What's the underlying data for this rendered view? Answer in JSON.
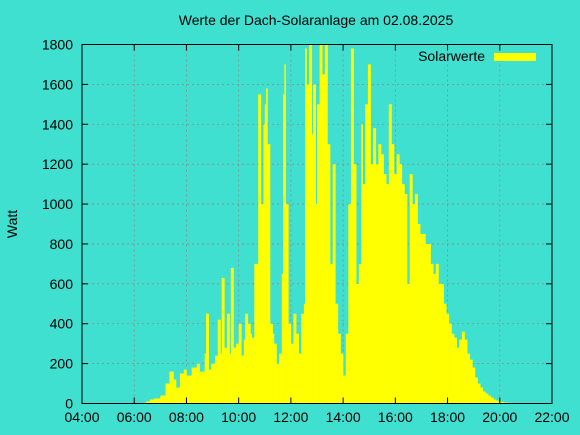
{
  "chart_data": {
    "type": "area",
    "title": "Werte der Dach-Solaranlage am 02.08.2025",
    "xlabel": "",
    "ylabel": "Watt",
    "x_unit": "hours",
    "xlim": [
      4,
      22
    ],
    "ylim": [
      0,
      1800
    ],
    "x_ticks": [
      {
        "value": 4,
        "label": "04:00"
      },
      {
        "value": 6,
        "label": "06:00"
      },
      {
        "value": 8,
        "label": "08:00"
      },
      {
        "value": 10,
        "label": "10:00"
      },
      {
        "value": 12,
        "label": "12:00"
      },
      {
        "value": 14,
        "label": "14:00"
      },
      {
        "value": 16,
        "label": "16:00"
      },
      {
        "value": 18,
        "label": "18:00"
      },
      {
        "value": 20,
        "label": "20:00"
      },
      {
        "value": 22,
        "label": "22:00"
      }
    ],
    "y_ticks": [
      {
        "value": 0,
        "label": "0"
      },
      {
        "value": 200,
        "label": "200"
      },
      {
        "value": 400,
        "label": "400"
      },
      {
        "value": 600,
        "label": "600"
      },
      {
        "value": 800,
        "label": "800"
      },
      {
        "value": 1000,
        "label": "1000"
      },
      {
        "value": 1200,
        "label": "1200"
      },
      {
        "value": 1400,
        "label": "1400"
      },
      {
        "value": 1600,
        "label": "1600"
      },
      {
        "value": 1800,
        "label": "1800"
      }
    ],
    "grid": true,
    "legend_position": "top-right",
    "series": [
      {
        "name": "Solarwerte",
        "color": "#ffff00",
        "x": [
          6.45,
          6.6,
          6.75,
          7.0,
          7.2,
          7.35,
          7.5,
          7.6,
          7.75,
          7.9,
          8.0,
          8.2,
          8.4,
          8.5,
          8.7,
          8.75,
          8.85,
          8.95,
          9.0,
          9.1,
          9.2,
          9.3,
          9.35,
          9.45,
          9.55,
          9.65,
          9.7,
          9.8,
          9.9,
          10.0,
          10.1,
          10.2,
          10.25,
          10.35,
          10.45,
          10.5,
          10.6,
          10.75,
          10.85,
          10.95,
          11.0,
          11.05,
          11.1,
          11.2,
          11.3,
          11.35,
          11.45,
          11.55,
          11.65,
          11.7,
          11.75,
          11.8,
          11.9,
          12.0,
          12.1,
          12.2,
          12.3,
          12.4,
          12.5,
          12.55,
          12.6,
          12.7,
          12.8,
          12.85,
          12.95,
          13.0,
          13.1,
          13.2,
          13.3,
          13.4,
          13.5,
          13.6,
          13.7,
          13.8,
          13.9,
          14.0,
          14.1,
          14.2,
          14.3,
          14.4,
          14.5,
          14.6,
          14.7,
          14.75,
          14.85,
          14.95,
          15.05,
          15.15,
          15.25,
          15.35,
          15.45,
          15.55,
          15.65,
          15.75,
          15.85,
          15.95,
          16.05,
          16.15,
          16.25,
          16.35,
          16.45,
          16.55,
          16.65,
          16.75,
          16.85,
          16.95,
          17.05,
          17.15,
          17.25,
          17.35,
          17.45,
          17.55,
          17.65,
          17.75,
          17.85,
          17.95,
          18.05,
          18.15,
          18.25,
          18.35,
          18.45,
          18.55,
          18.65,
          18.75,
          18.85,
          18.95,
          19.05,
          19.15,
          19.25,
          19.35,
          19.45,
          19.55,
          19.65,
          19.75,
          19.85,
          19.95,
          20.05,
          20.15,
          20.3,
          20.45,
          20.6
        ],
        "values": [
          10,
          20,
          25,
          40,
          100,
          160,
          120,
          80,
          150,
          170,
          140,
          180,
          200,
          160,
          250,
          450,
          170,
          200,
          200,
          240,
          420,
          250,
          630,
          280,
          450,
          250,
          680,
          280,
          300,
          400,
          240,
          320,
          450,
          400,
          350,
          330,
          700,
          1550,
          1000,
          1400,
          1500,
          1580,
          1300,
          400,
          350,
          300,
          200,
          250,
          650,
          1550,
          1700,
          1000,
          400,
          300,
          450,
          350,
          250,
          450,
          500,
          1780,
          1600,
          1800,
          1350,
          1600,
          1000,
          1500,
          1800,
          1650,
          1800,
          1300,
          700,
          1200,
          500,
          350,
          250,
          140,
          350,
          1000,
          1780,
          1200,
          600,
          700,
          1400,
          1100,
          1500,
          1700,
          1200,
          1380,
          1200,
          1300,
          1250,
          1150,
          1100,
          1500,
          1300,
          1150,
          1250,
          1200,
          1100,
          1050,
          600,
          1150,
          1000,
          1050,
          900,
          850,
          850,
          800,
          800,
          700,
          650,
          700,
          600,
          600,
          500,
          450,
          400,
          350,
          330,
          280,
          320,
          360,
          320,
          250,
          220,
          180,
          130,
          100,
          80,
          60,
          50,
          40,
          30,
          20,
          15,
          10,
          8,
          5,
          3,
          2,
          0
        ]
      }
    ]
  }
}
